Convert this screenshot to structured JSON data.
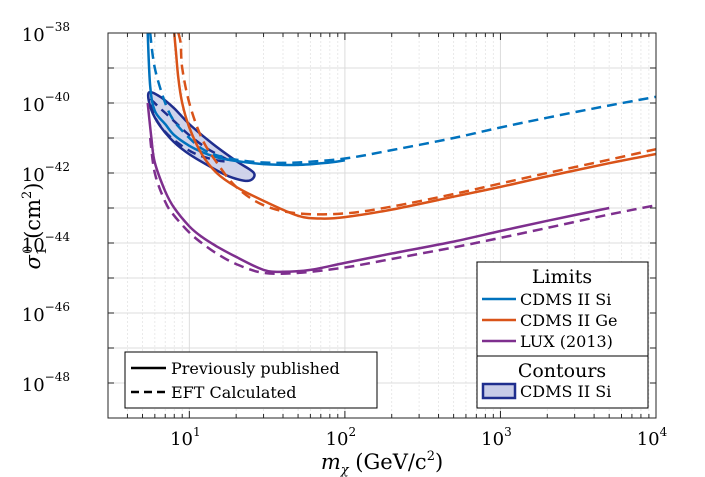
{
  "chart_data": {
    "type": "line",
    "x_scale": "log",
    "y_scale": "log",
    "xlim": [
      3,
      10000
    ],
    "ylim": [
      1e-49,
      1e-38
    ],
    "x_ticks": [
      {
        "value": 10,
        "label": "10",
        "exp": "1"
      },
      {
        "value": 100,
        "label": "10",
        "exp": "2"
      },
      {
        "value": 1000,
        "label": "10",
        "exp": "3"
      },
      {
        "value": 10000,
        "label": "10",
        "exp": "4"
      }
    ],
    "y_ticks": [
      {
        "value": 1e-38,
        "label": "10",
        "exp": "−38"
      },
      {
        "value": 1e-40,
        "label": "10",
        "exp": "−40"
      },
      {
        "value": 1e-42,
        "label": "10",
        "exp": "−42"
      },
      {
        "value": 1e-44,
        "label": "10",
        "exp": "−44"
      },
      {
        "value": 1e-46,
        "label": "10",
        "exp": "−46"
      },
      {
        "value": 1e-48,
        "label": "10",
        "exp": "−48"
      }
    ],
    "xlabel": {
      "m": "m",
      "sub": "χ",
      "rest": " (GeV/c",
      "sup": "2",
      "end": ")"
    },
    "ylabel": {
      "sigma": "σ",
      "sub": "1",
      "sup": "0",
      "rest": " (cm",
      "sup2": "2",
      "end": ")"
    },
    "grid": true,
    "series": [
      {
        "name": "CDMS II Si",
        "color": "#0072BD",
        "style": "solid",
        "x": [
          5.4,
          5.6,
          6,
          7,
          8,
          10,
          12,
          15,
          20,
          30,
          50,
          80,
          100
        ],
        "y": [
          1e-38,
          3e-40,
          6e-41,
          2.5e-41,
          1.2e-41,
          6e-42,
          4e-42,
          2.8e-42,
          2.2e-42,
          1.8e-42,
          1.7e-42,
          2e-42,
          2.3e-42
        ]
      },
      {
        "name": "CDMS II Si",
        "color": "#0072BD",
        "style": "dashed",
        "x": [
          5.6,
          6,
          7,
          8,
          10,
          12,
          15,
          20,
          30,
          50,
          100,
          200,
          500,
          1000,
          2000,
          5000,
          10000
        ],
        "y": [
          1e-38,
          1e-39,
          1e-40,
          3e-41,
          1e-41,
          5e-42,
          3.2e-42,
          2.4e-42,
          2e-42,
          2e-42,
          2.6e-42,
          4.5e-42,
          1e-41,
          2e-41,
          3.8e-41,
          8.5e-41,
          1.5e-40
        ]
      },
      {
        "name": "CDMS II Ge",
        "color": "#D95319",
        "style": "solid",
        "x": [
          8,
          8.2,
          8.5,
          9,
          10,
          12,
          15,
          20,
          30,
          50,
          70,
          100,
          200,
          500,
          1000,
          2000,
          5000,
          10000
        ],
        "y": [
          1e-38,
          3e-39,
          5e-40,
          1e-40,
          2e-41,
          3.5e-42,
          1e-42,
          4e-43,
          1.6e-43,
          6e-44,
          5e-44,
          5.5e-44,
          9e-44,
          2.1e-43,
          4e-43,
          8e-43,
          1.9e-42,
          3.5e-42
        ]
      },
      {
        "name": "CDMS II Ge",
        "color": "#D95319",
        "style": "dashed",
        "x": [
          8.5,
          8.8,
          9,
          10,
          12,
          15,
          20,
          30,
          50,
          100,
          200,
          500,
          1000,
          2000,
          5000,
          10000
        ],
        "y": [
          1e-38,
          5e-39,
          1e-39,
          1e-40,
          1e-41,
          2e-42,
          4e-43,
          1.2e-43,
          7e-44,
          7e-44,
          1.1e-43,
          2.5e-43,
          5e-43,
          1e-42,
          2.4e-42,
          4.8e-42
        ]
      },
      {
        "name": "LUX (2013)",
        "color": "#7E2F8E",
        "style": "solid",
        "x": [
          5.4,
          5.7,
          6,
          7,
          8,
          10,
          12,
          15,
          20,
          30,
          40,
          60,
          100,
          200,
          500,
          1000,
          2000,
          5000
        ],
        "y": [
          1e-40,
          1e-41,
          2e-42,
          3e-43,
          1e-43,
          3e-44,
          1.5e-44,
          8e-45,
          4e-45,
          1.7e-45,
          1.5e-45,
          1.7e-45,
          2.7e-45,
          5e-45,
          1.1e-44,
          2.2e-44,
          4.3e-44,
          1e-43
        ]
      },
      {
        "name": "LUX (2013)",
        "color": "#7E2F8E",
        "style": "dashed",
        "x": [
          5.6,
          6,
          7,
          8,
          10,
          12,
          15,
          20,
          30,
          50,
          100,
          200,
          500,
          1000,
          2000,
          5000,
          10000
        ],
        "y": [
          1e-41,
          1e-42,
          1.5e-43,
          6e-44,
          2e-44,
          1e-44,
          5e-45,
          2.5e-45,
          1.4e-45,
          1.4e-45,
          2e-45,
          3.5e-45,
          7.5e-45,
          1.4e-44,
          2.7e-44,
          6.5e-44,
          1.2e-43
        ]
      }
    ],
    "contours": [
      {
        "name": "CDMS II Si",
        "color": "#1F2E8E",
        "fill": "#C8CCE8",
        "style": "solid",
        "x": [
          5.5,
          6.5,
          8,
          10,
          14,
          20,
          26,
          24,
          18,
          13,
          9.5,
          7.5,
          6.2,
          5.6,
          5.5
        ],
        "y": [
          2e-40,
          1.5e-40,
          7e-41,
          2.5e-41,
          7e-42,
          2.2e-42,
          1e-42,
          6e-43,
          8e-43,
          1.7e-42,
          4e-42,
          1e-41,
          3e-41,
          8e-41,
          2e-40
        ]
      },
      {
        "name": "CDMS II Si",
        "color": "#1F2E8E",
        "fill": "#C8CCE8",
        "style": "dashed",
        "x": [
          5.6,
          6.5,
          8,
          10,
          13,
          16,
          18,
          15,
          11,
          8.5,
          7,
          6,
          5.6
        ],
        "y": [
          1.2e-40,
          7e-41,
          3e-41,
          1.2e-41,
          5e-42,
          3e-42,
          2.2e-42,
          2.3e-42,
          3.5e-42,
          7e-42,
          1.5e-41,
          4e-41,
          1.2e-40
        ]
      }
    ],
    "legend_limits": {
      "title": "Limits",
      "entries": [
        {
          "label": "CDMS II Si",
          "color": "#0072BD"
        },
        {
          "label": "CDMS II Ge",
          "color": "#D95319"
        },
        {
          "label": "LUX (2013)",
          "color": "#7E2F8E"
        }
      ],
      "placement": "bottom-right"
    },
    "legend_contours": {
      "title": "Contours",
      "entries": [
        {
          "label": "CDMS II Si",
          "color": "#1F2E8E",
          "fill": "#C8CCE8"
        }
      ],
      "placement": "bottom-right"
    },
    "legend_style": {
      "entries": [
        {
          "label": "Previously published",
          "style": "solid"
        },
        {
          "label": "EFT Calculated",
          "style": "dashed"
        }
      ],
      "placement": "bottom-left"
    }
  }
}
